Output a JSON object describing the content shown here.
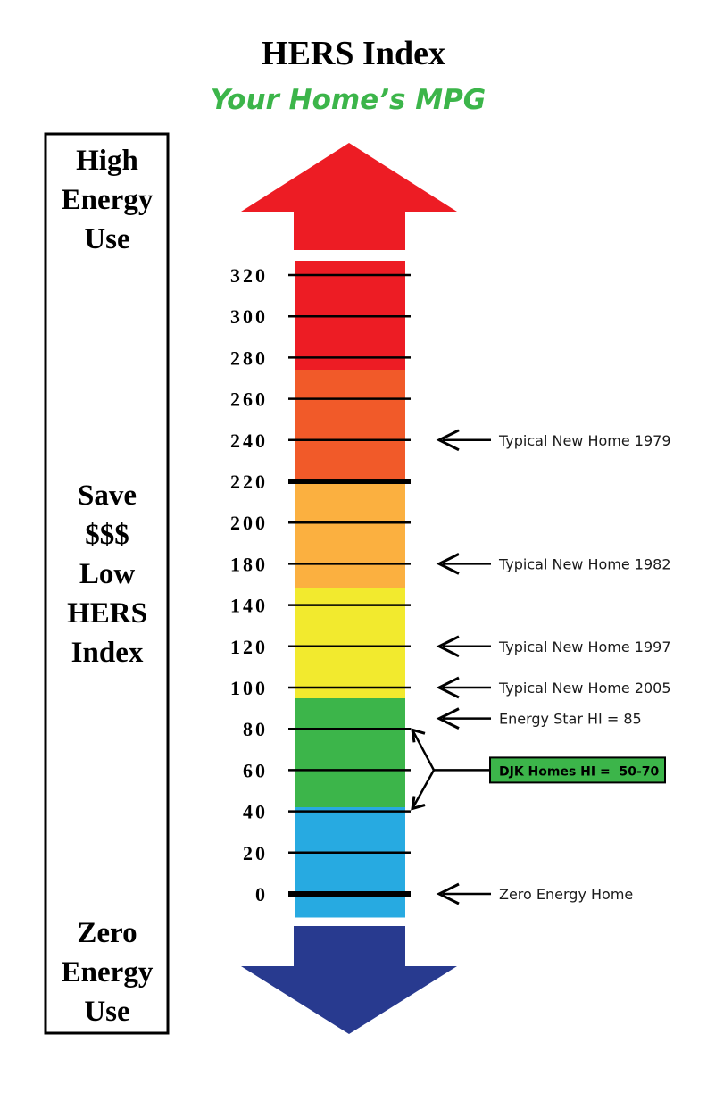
{
  "title": "HERS Index",
  "subtitle": "Your Home’s MPG",
  "side_panel": {
    "top_lines": [
      "High",
      "Energy",
      "Use"
    ],
    "middle_lines": [
      "Save",
      "$$$",
      "Low",
      "HERS",
      "Index"
    ],
    "bottom_lines": [
      "Zero",
      "Energy",
      "Use"
    ]
  },
  "colors": {
    "subtitle": "#3cb54a",
    "up_arrow": "#ed1c24",
    "down_arrow": "#283a8f",
    "highlight_box": "#3cb54a"
  },
  "scale": {
    "ticks": [
      {
        "label": "320",
        "value": 320,
        "bold": false
      },
      {
        "label": "300",
        "value": 300,
        "bold": false
      },
      {
        "label": "280",
        "value": 280,
        "bold": false
      },
      {
        "label": "260",
        "value": 260,
        "bold": false
      },
      {
        "label": "240",
        "value": 240,
        "bold": false
      },
      {
        "label": "220",
        "value": 220,
        "bold": true
      },
      {
        "label": "200",
        "value": 200,
        "bold": false
      },
      {
        "label": "180",
        "value": 180,
        "bold": false
      },
      {
        "label": "140",
        "value": 140,
        "bold": false
      },
      {
        "label": "120",
        "value": 120,
        "bold": false
      },
      {
        "label": "100",
        "value": 100,
        "bold": false
      },
      {
        "label": "80",
        "value": 80,
        "bold": false
      },
      {
        "label": "60",
        "value": 60,
        "bold": false
      },
      {
        "label": "40",
        "value": 40,
        "bold": false
      },
      {
        "label": "20",
        "value": 20,
        "bold": false
      },
      {
        "label": "0",
        "value": 0,
        "bold": true
      }
    ],
    "bands": [
      {
        "color": "#ed1c24"
      },
      {
        "color": "#f15a29"
      },
      {
        "color": "#fbb040"
      },
      {
        "color": "#f2ea2e"
      },
      {
        "color": "#3cb54a"
      },
      {
        "color": "#27aae1"
      }
    ]
  },
  "annotations": [
    {
      "label": "Typical New Home 1979",
      "value": 240
    },
    {
      "label": "Typical New Home 1982",
      "value": 180
    },
    {
      "label": "Typical New Home 1997",
      "value": 120
    },
    {
      "label": "Typical New Home 2005",
      "value": 100
    },
    {
      "label": "Energy Star HI = 85",
      "value": 85
    },
    {
      "label": "Zero Energy Home",
      "value": 0
    }
  ],
  "highlight": {
    "label": "DJK Homes HI =  50-70",
    "range": [
      50,
      70
    ]
  }
}
